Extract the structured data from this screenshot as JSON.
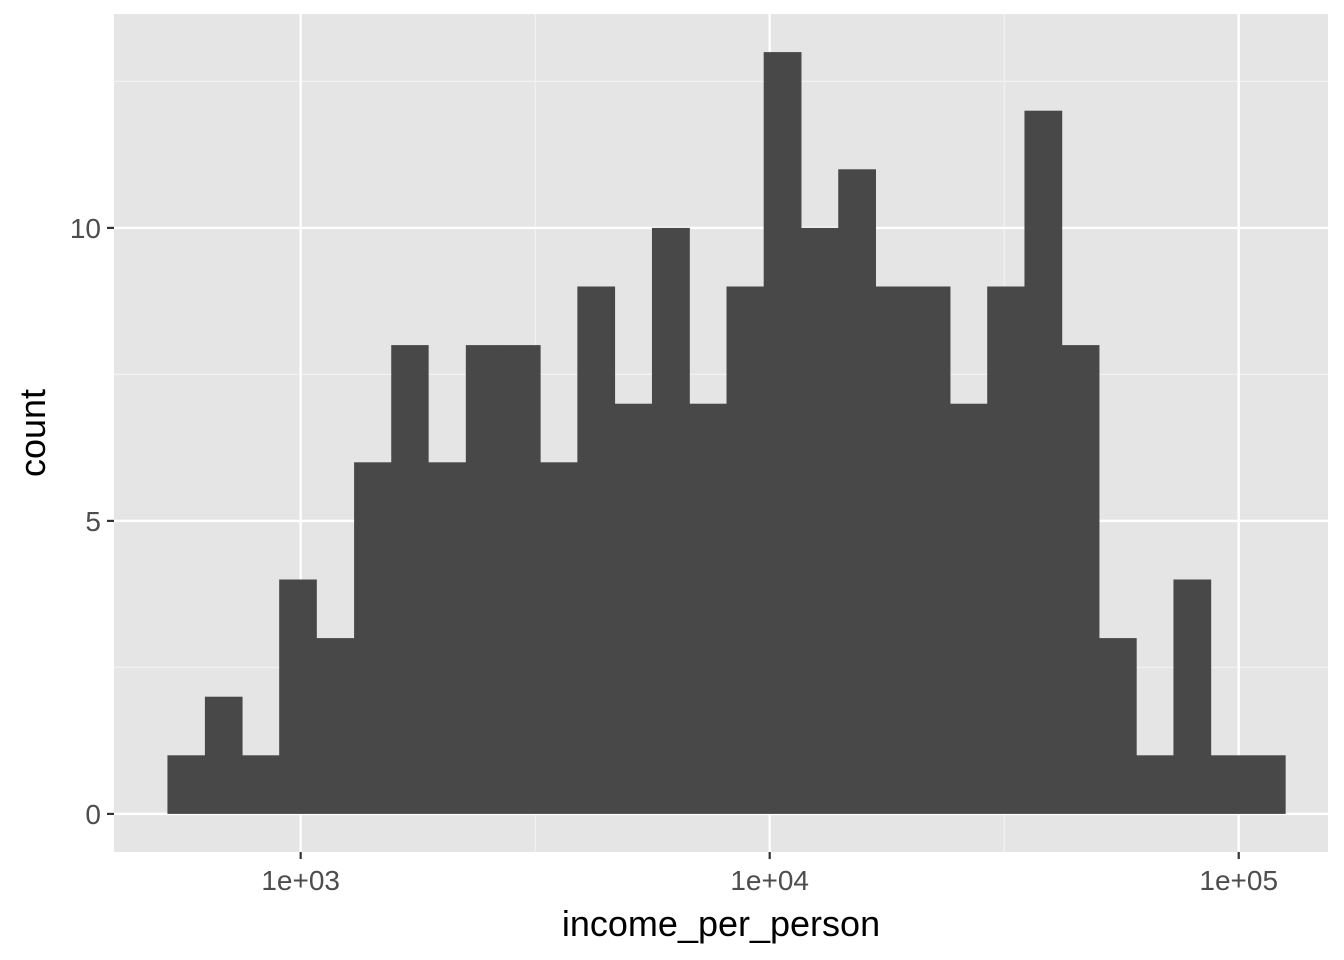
{
  "chart_data": {
    "type": "bar",
    "subtype": "histogram",
    "title": "",
    "xlabel": "income_per_person",
    "ylabel": "count",
    "x_scale": "log10",
    "xlim": [
      400,
      155000
    ],
    "ylim": [
      -0.65,
      13.65
    ],
    "x_ticks": [
      {
        "value": 1000,
        "label": "1e+03"
      },
      {
        "value": 10000,
        "label": "1e+04"
      },
      {
        "value": 100000,
        "label": "1e+05"
      }
    ],
    "y_ticks": [
      {
        "value": 0,
        "label": "0"
      },
      {
        "value": 5,
        "label": "5"
      },
      {
        "value": 10,
        "label": "10"
      }
    ],
    "bins": [
      {
        "x_min": 520,
        "x_max": 625,
        "count": 1
      },
      {
        "x_min": 625,
        "x_max": 750,
        "count": 2
      },
      {
        "x_min": 750,
        "x_max": 900,
        "count": 1
      },
      {
        "x_min": 900,
        "x_max": 1080,
        "count": 4
      },
      {
        "x_min": 1080,
        "x_max": 1300,
        "count": 3
      },
      {
        "x_min": 1300,
        "x_max": 1560,
        "count": 6
      },
      {
        "x_min": 1560,
        "x_max": 1870,
        "count": 8
      },
      {
        "x_min": 1870,
        "x_max": 2250,
        "count": 6
      },
      {
        "x_min": 2250,
        "x_max": 2700,
        "count": 8
      },
      {
        "x_min": 2700,
        "x_max": 3240,
        "count": 8
      },
      {
        "x_min": 3240,
        "x_max": 3890,
        "count": 6
      },
      {
        "x_min": 3890,
        "x_max": 4670,
        "count": 9
      },
      {
        "x_min": 4670,
        "x_max": 5610,
        "count": 7
      },
      {
        "x_min": 5610,
        "x_max": 6740,
        "count": 10
      },
      {
        "x_min": 6740,
        "x_max": 8090,
        "count": 7
      },
      {
        "x_min": 8090,
        "x_max": 9710,
        "count": 9
      },
      {
        "x_min": 9710,
        "x_max": 11660,
        "count": 13
      },
      {
        "x_min": 11660,
        "x_max": 14000,
        "count": 10
      },
      {
        "x_min": 14000,
        "x_max": 16810,
        "count": 11
      },
      {
        "x_min": 16810,
        "x_max": 20180,
        "count": 9
      },
      {
        "x_min": 20180,
        "x_max": 24230,
        "count": 9
      },
      {
        "x_min": 24230,
        "x_max": 29090,
        "count": 7
      },
      {
        "x_min": 29090,
        "x_max": 34930,
        "count": 9
      },
      {
        "x_min": 34930,
        "x_max": 41940,
        "count": 12
      },
      {
        "x_min": 41940,
        "x_max": 50350,
        "count": 8
      },
      {
        "x_min": 50350,
        "x_max": 60450,
        "count": 3
      },
      {
        "x_min": 60450,
        "x_max": 72580,
        "count": 1
      },
      {
        "x_min": 72580,
        "x_max": 87140,
        "count": 4
      },
      {
        "x_min": 87140,
        "x_max": 104600,
        "count": 1
      },
      {
        "x_min": 104600,
        "x_max": 125600,
        "count": 1
      }
    ],
    "grid": true,
    "legend": "none",
    "colors": {
      "panel_background": "#e5e5e5",
      "grid_major": "#ffffff",
      "grid_minor": "#f2f2f2",
      "bar_fill": "#484848",
      "tick_color": "#333333",
      "tick_label_color": "#4d4d4d"
    }
  }
}
